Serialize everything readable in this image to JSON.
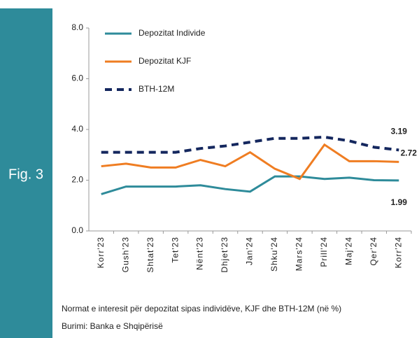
{
  "sidebar": {
    "label": "Fig. 3"
  },
  "chart_data": {
    "type": "line",
    "categories": [
      "Korr'23",
      "Gush'23",
      "Shtat'23",
      "Tet'23",
      "Nënt'23",
      "Dhjet'23",
      "Jan'24",
      "Shku'24",
      "Mars'24",
      "Prill'24",
      "Maj'24",
      "Qer'24",
      "Korr'24"
    ],
    "series": [
      {
        "name": "Depozitat Individe",
        "color": "#2e8b9a",
        "dash": false,
        "values": [
          1.45,
          1.75,
          1.75,
          1.75,
          1.8,
          1.65,
          1.55,
          2.15,
          2.15,
          2.05,
          2.1,
          2.0,
          1.99
        ],
        "value_labels": [
          null,
          null,
          null,
          null,
          null,
          null,
          null,
          null,
          null,
          null,
          null,
          null,
          "1.99"
        ]
      },
      {
        "name": "Depozitat KJF",
        "color": "#ef7d22",
        "dash": false,
        "values": [
          2.55,
          2.65,
          2.5,
          2.5,
          2.8,
          2.55,
          3.1,
          2.45,
          2.05,
          3.4,
          2.75,
          2.75,
          2.72
        ],
        "value_labels": [
          null,
          null,
          null,
          null,
          null,
          null,
          null,
          null,
          null,
          null,
          null,
          null,
          "2.72"
        ]
      },
      {
        "name": "BTH-12M",
        "color": "#14275e",
        "dash": true,
        "values": [
          3.1,
          3.1,
          3.1,
          3.1,
          3.25,
          3.35,
          3.5,
          3.65,
          3.65,
          3.7,
          3.55,
          3.3,
          3.19
        ],
        "value_labels": [
          null,
          null,
          null,
          null,
          null,
          null,
          null,
          null,
          null,
          null,
          null,
          null,
          "3.19"
        ]
      }
    ],
    "ylim": [
      0,
      8
    ],
    "yticks": [
      {
        "value": 0,
        "label": "0.0"
      },
      {
        "value": 2,
        "label": "2.0"
      },
      {
        "value": 4,
        "label": "4.0"
      },
      {
        "value": 6,
        "label": "6.0"
      },
      {
        "value": 8,
        "label": "8.0"
      }
    ],
    "grid": false
  },
  "caption": {
    "note": "Normat e interesit për depozitat sipas individëve, KJF dhe BTH-12M (në %)",
    "source": "Burimi: Banka e Shqipërisë"
  }
}
